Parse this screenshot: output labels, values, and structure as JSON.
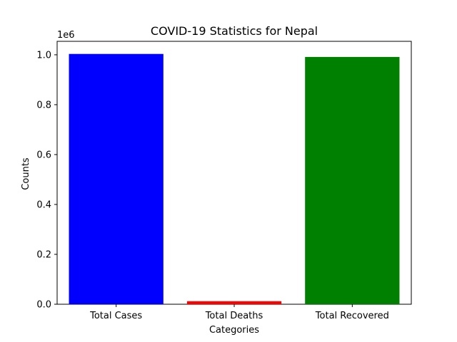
{
  "chart_data": {
    "type": "bar",
    "title": "COVID-19 Statistics for Nepal",
    "xlabel": "Categories",
    "ylabel": "Counts",
    "y_offset_text": "1e6",
    "categories": [
      "Total Cases",
      "Total Deaths",
      "Total Recovered"
    ],
    "values": [
      1003450,
      12031,
      991419
    ],
    "colors": [
      "#0000ff",
      "#ff0000",
      "#008000"
    ],
    "ylim": [
      0,
      1054000
    ],
    "yticks": [
      0,
      200000,
      400000,
      600000,
      800000,
      1000000
    ],
    "ytick_labels": [
      "0.0",
      "0.2",
      "0.4",
      "0.6",
      "0.8",
      "1.0"
    ],
    "grid": false
  }
}
